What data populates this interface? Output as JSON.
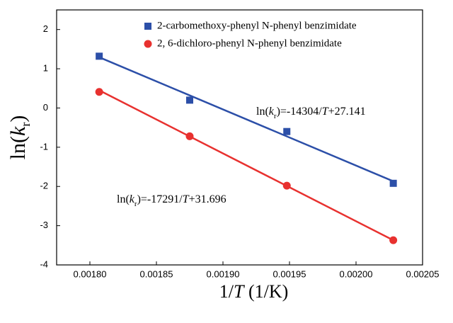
{
  "chart_data": {
    "type": "scatter",
    "xlabel": [
      "1/",
      "T",
      " (1/K)"
    ],
    "ylabel": [
      "ln(",
      "k",
      "r",
      ")"
    ],
    "xlim": [
      0.001775,
      0.00205
    ],
    "ylim": [
      -4,
      2.5
    ],
    "xticks": [
      {
        "value": 0.0018,
        "label": "0.00180"
      },
      {
        "value": 0.00185,
        "label": "0.00185"
      },
      {
        "value": 0.0019,
        "label": "0.00190"
      },
      {
        "value": 0.00195,
        "label": "0.00195"
      },
      {
        "value": 0.002,
        "label": "0.00200"
      },
      {
        "value": 0.00205,
        "label": "0.00205"
      }
    ],
    "yticks": [
      -4,
      -3,
      -2,
      -1,
      0,
      1,
      2
    ],
    "series": [
      {
        "name": "2-carbomethoxy-phenyl N-phenyl benzimidate",
        "color": "#2c4fa8",
        "marker": "square",
        "x": [
          0.001807,
          0.001875,
          0.001948,
          0.002028
        ],
        "values": [
          1.32,
          0.2,
          -0.6,
          -1.92
        ],
        "fit_x": [
          0.001807,
          0.002028
        ],
        "fit_values": [
          1.294,
          -1.868
        ],
        "equation": [
          "ln(",
          "k",
          "r",
          ")=-14304/",
          "T",
          "+27.141"
        ]
      },
      {
        "name": "2, 6-dichloro-phenyl N-phenyl benzimidate",
        "color": "#e8312f",
        "marker": "circle",
        "x": [
          0.001807,
          0.001875,
          0.001948,
          0.002028
        ],
        "values": [
          0.41,
          -0.72,
          -1.98,
          -3.37
        ],
        "fit_x": [
          0.001807,
          0.002028
        ],
        "fit_values": [
          0.451,
          -3.37
        ],
        "equation": [
          "ln(",
          "k",
          "r",
          ")=-17291/",
          "T",
          "+31.696"
        ]
      }
    ]
  }
}
